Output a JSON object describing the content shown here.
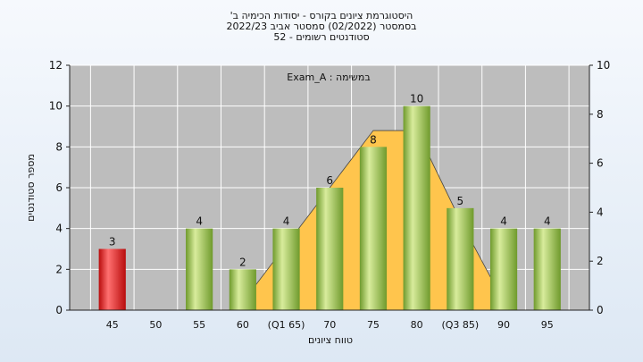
{
  "header": {
    "title_line1": "היסטוגרמת ציונים בקורס - יסודות הכימיה ב'",
    "title_line2": "בסמסטר (02/2022) סמסטר אביב 2022/23",
    "title_line3": "סטודנטים רשומים - 52"
  },
  "colors": {
    "bar_green_light": "#d8ec9c",
    "bar_green_dark": "#6f9a2c",
    "bar_red_light": "#ff7070",
    "bar_red_dark": "#b80c0c",
    "area_fill": "#ffc54d",
    "plot_bg": "#bdbdbd",
    "grid": "#ffffff"
  },
  "chart_data": {
    "type": "bar",
    "annotation": "Exam_A : במשימה",
    "xlabel": "טווח ציונים",
    "ylabel": "מספר סטודנטים",
    "ylim": [
      0,
      12
    ],
    "y_ticks": [
      0,
      2,
      4,
      6,
      8,
      10,
      12
    ],
    "y2lim": [
      0,
      10
    ],
    "y2_ticks": [
      0,
      2,
      4,
      6,
      8,
      10
    ],
    "categories": [
      "45",
      "50",
      "55",
      "60",
      "(Q1 65)",
      "70",
      "75",
      "80",
      "(Q3 85)",
      "90",
      "95"
    ],
    "values": [
      3,
      0,
      4,
      2,
      4,
      6,
      8,
      10,
      5,
      4,
      4
    ],
    "data_labels": [
      "3",
      "",
      "4",
      "2",
      "4",
      "6",
      "8",
      "10",
      "5",
      "4",
      "4"
    ],
    "highlight": [
      "red",
      "",
      "green",
      "green",
      "green",
      "green",
      "green",
      "green",
      "green",
      "green",
      "green"
    ],
    "distribution_overlay": {
      "type": "area",
      "points": [
        {
          "x": "60",
          "y": 0.4
        },
        {
          "x": "(Q1 65)",
          "y": 3.2
        },
        {
          "x": "70",
          "y": 6.0
        },
        {
          "x": "75",
          "y": 8.8
        },
        {
          "x": "80",
          "y": 8.8
        },
        {
          "x": "(Q3 85)",
          "y": 4.4
        },
        {
          "x": "90",
          "y": 0.4
        }
      ]
    },
    "grid": true
  }
}
